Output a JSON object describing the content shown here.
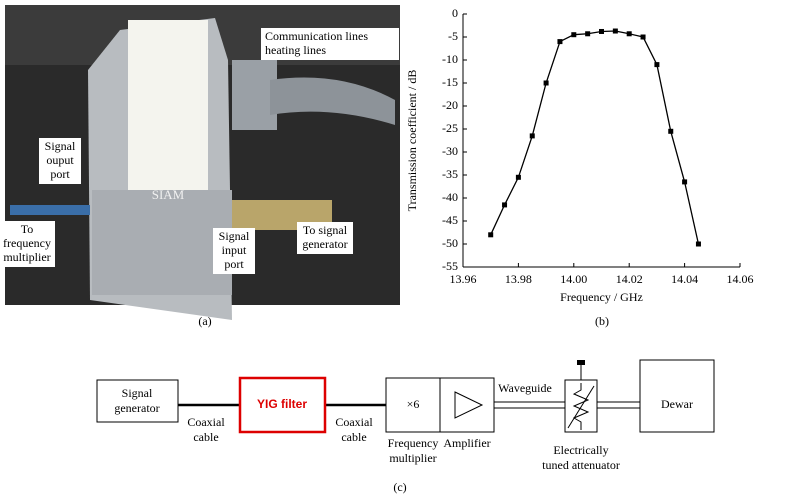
{
  "photo": {
    "labels": [
      [
        "Communication lines",
        "heating lines"
      ],
      [
        "Signal",
        "ouput",
        "port"
      ],
      [
        "To",
        "frequency",
        "multiplier"
      ],
      [
        "Signal",
        "input",
        "port"
      ],
      [
        "To signal",
        "generator"
      ]
    ],
    "device_text": "SIAM",
    "caption": "(a)"
  },
  "chart_data": {
    "type": "line",
    "ylabel": "Transmission coefficient / dB",
    "xlabel": "Frequency / GHz",
    "caption": "(b)",
    "x": [
      13.97,
      13.975,
      13.98,
      13.985,
      13.99,
      13.995,
      14.0,
      14.005,
      14.01,
      14.015,
      14.02,
      14.025,
      14.03,
      14.035,
      14.04,
      14.045
    ],
    "series": [
      {
        "color": "#000000",
        "values": [
          -48,
          -41.5,
          -35.5,
          -26.5,
          -15,
          -6,
          -4.5,
          -4.3,
          -3.8,
          -3.7,
          -4.3,
          -5,
          -11,
          -25.5,
          -36.5,
          -50
        ]
      }
    ],
    "xlim": [
      13.96,
      14.06
    ],
    "xticks": [
      13.96,
      13.98,
      {
        "value": 14,
        "label": "14.00"
      },
      14.02,
      14.04,
      14.06
    ],
    "ylim": [
      -55,
      0
    ],
    "yticks": [
      0,
      -5,
      -10,
      -15,
      -20,
      -25,
      -30,
      -35,
      -40,
      -45,
      -50,
      -55
    ]
  },
  "diagram": {
    "nodes": [
      [
        "Signal",
        "generator"
      ],
      [
        "YIG filter"
      ],
      [
        "×6"
      ],
      [
        "Dewar"
      ]
    ],
    "labels": [
      [
        "Coaxial",
        "cable"
      ],
      [
        "Coaxial",
        "cable"
      ],
      [
        "Frequency",
        "multiplier"
      ],
      [
        "Amplifier"
      ],
      [
        "Waveguide"
      ],
      [
        "Electrically",
        "tuned attenuator"
      ]
    ],
    "caption": "(c)"
  }
}
